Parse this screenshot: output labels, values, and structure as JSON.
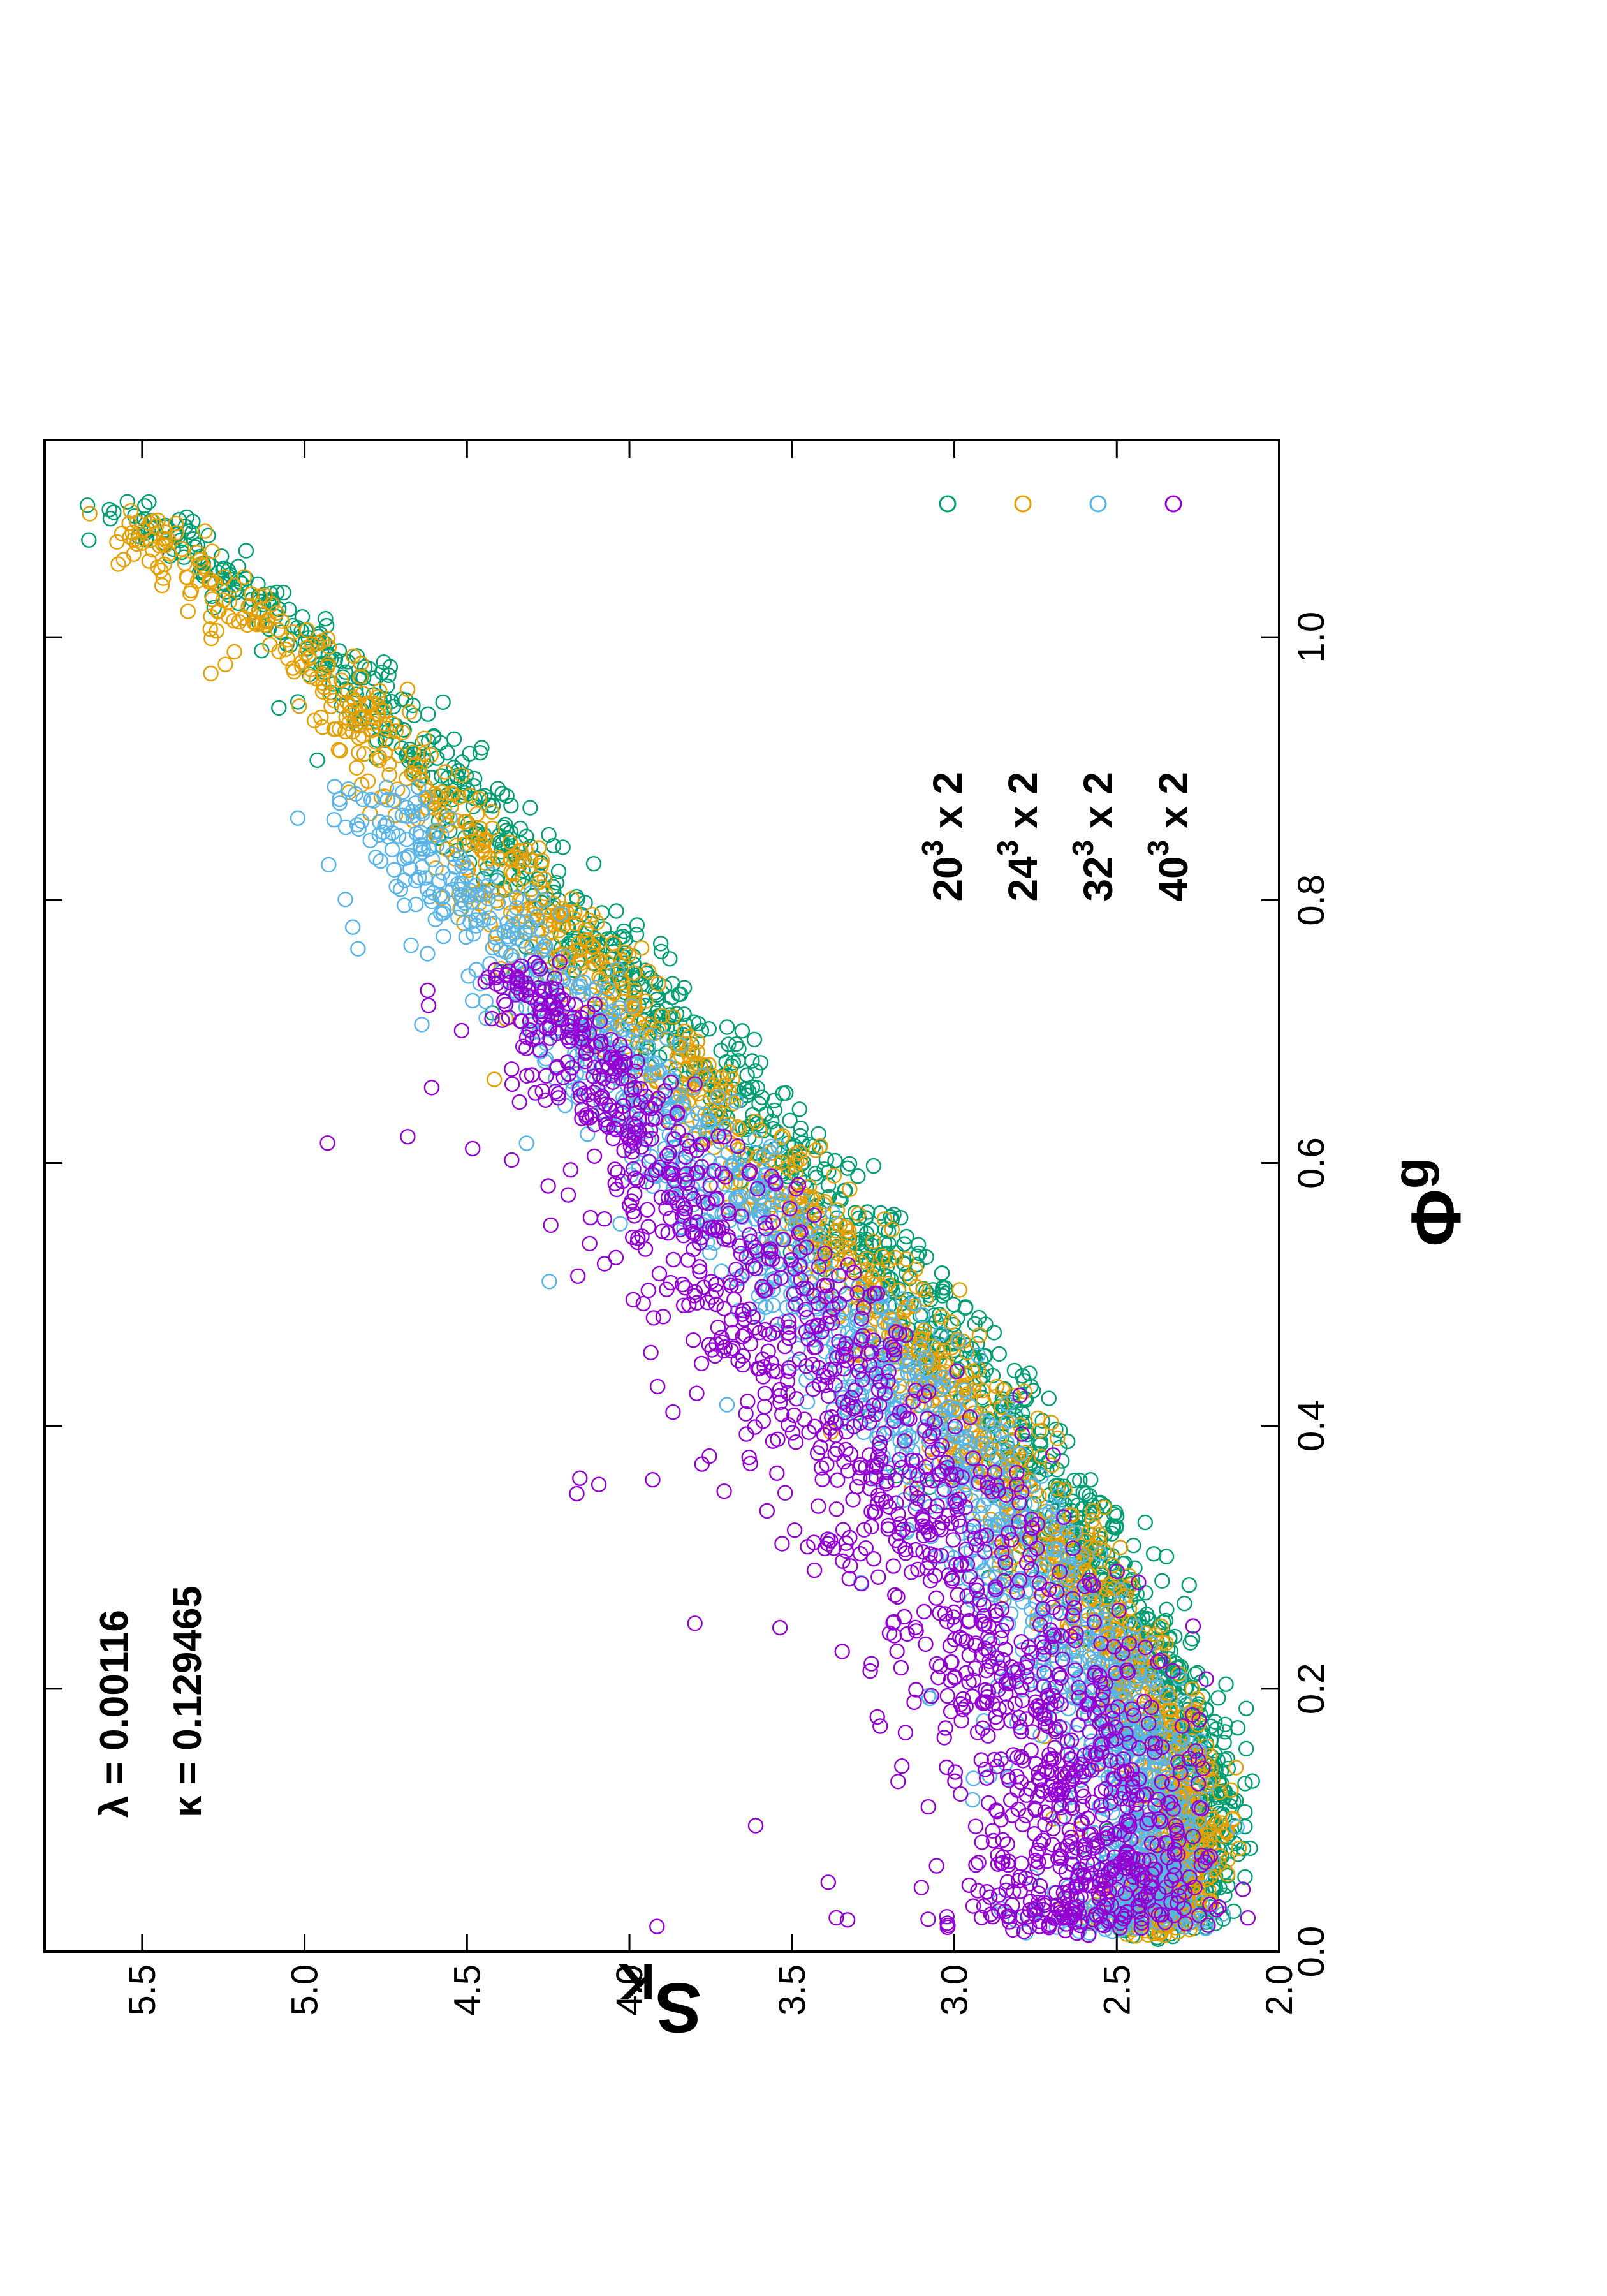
{
  "chart_data": {
    "type": "scatter",
    "orientation": "rotated-90-ccw",
    "xlabel": "Φ",
    "xlabel_superscript": "g",
    "ylabel": "S",
    "ylabel_subscript": "K",
    "xlim": [
      0.0,
      1.15
    ],
    "ylim": [
      2.0,
      5.8
    ],
    "xticks": [
      "0.0",
      "0.2",
      "0.4",
      "0.6",
      "0.8",
      "1.0"
    ],
    "yticks": [
      "2.0",
      "2.5",
      "3.0",
      "3.5",
      "4.0",
      "4.5",
      "5.0",
      "5.5"
    ],
    "legend_position": "bottom-right of plot (top-right on page)",
    "annotations": [
      "λ = 0.00116",
      "κ = 0.129465"
    ],
    "marker": "open-circle",
    "series": [
      {
        "name": "20^3 x 2",
        "label_base": "20",
        "label_sup": "3",
        "label_rest": " x 2",
        "color": "#009e73",
        "x": [
          0.02,
          0.03,
          0.05,
          0.08,
          0.1,
          0.13,
          0.16,
          0.2,
          0.24,
          0.28,
          0.33,
          0.38,
          0.43,
          0.48,
          0.53,
          0.58,
          0.63,
          0.68,
          0.73,
          0.78,
          0.83,
          0.88,
          0.93,
          0.98,
          1.02,
          1.06,
          1.09,
          1.1
        ],
        "y": [
          2.38,
          2.33,
          2.28,
          2.24,
          2.23,
          2.25,
          2.27,
          2.33,
          2.42,
          2.52,
          2.64,
          2.77,
          2.92,
          3.08,
          3.25,
          3.42,
          3.6,
          3.78,
          3.96,
          4.15,
          4.34,
          4.52,
          4.7,
          4.9,
          5.1,
          5.3,
          5.5,
          5.68
        ],
        "spread": [
          0.22,
          0.2,
          0.18,
          0.16,
          0.16,
          0.16,
          0.17,
          0.18,
          0.19,
          0.2,
          0.2,
          0.21,
          0.21,
          0.21,
          0.21,
          0.21,
          0.21,
          0.2,
          0.2,
          0.2,
          0.19,
          0.19,
          0.18,
          0.17,
          0.16,
          0.14,
          0.12,
          0.08
        ]
      },
      {
        "name": "24^3 x 2",
        "label_base": "24",
        "label_sup": "3",
        "label_rest": " x 2",
        "color": "#e69f00",
        "x": [
          0.02,
          0.03,
          0.05,
          0.08,
          0.1,
          0.13,
          0.16,
          0.2,
          0.24,
          0.28,
          0.33,
          0.38,
          0.43,
          0.48,
          0.53,
          0.58,
          0.63,
          0.68,
          0.73,
          0.78,
          0.83,
          0.88,
          0.93,
          0.98,
          1.02,
          1.06,
          1.09
        ],
        "y": [
          2.43,
          2.38,
          2.34,
          2.31,
          2.3,
          2.32,
          2.35,
          2.42,
          2.51,
          2.61,
          2.74,
          2.88,
          3.02,
          3.18,
          3.35,
          3.52,
          3.7,
          3.88,
          4.06,
          4.25,
          4.44,
          4.62,
          4.8,
          5.0,
          5.18,
          5.38,
          5.55
        ],
        "spread": [
          0.24,
          0.22,
          0.2,
          0.18,
          0.18,
          0.18,
          0.19,
          0.2,
          0.21,
          0.22,
          0.22,
          0.23,
          0.23,
          0.24,
          0.24,
          0.24,
          0.24,
          0.23,
          0.23,
          0.22,
          0.22,
          0.21,
          0.2,
          0.19,
          0.17,
          0.15,
          0.12
        ]
      },
      {
        "name": "32^3 x 2",
        "label_base": "32",
        "label_sup": "3",
        "label_rest": " x 2",
        "color": "#56b4e9",
        "x": [
          0.02,
          0.03,
          0.05,
          0.08,
          0.1,
          0.13,
          0.16,
          0.2,
          0.24,
          0.28,
          0.33,
          0.38,
          0.43,
          0.48,
          0.53,
          0.58,
          0.63,
          0.68,
          0.73,
          0.78,
          0.83,
          0.88
        ],
        "y": [
          2.5,
          2.45,
          2.42,
          2.4,
          2.4,
          2.42,
          2.46,
          2.54,
          2.63,
          2.74,
          2.88,
          3.03,
          3.18,
          3.35,
          3.53,
          3.71,
          3.88,
          4.06,
          4.24,
          4.42,
          4.62,
          4.8
        ],
        "spread": [
          0.28,
          0.26,
          0.24,
          0.22,
          0.22,
          0.22,
          0.23,
          0.25,
          0.27,
          0.28,
          0.29,
          0.3,
          0.3,
          0.3,
          0.3,
          0.28,
          0.27,
          0.26,
          0.24,
          0.22,
          0.2,
          0.18
        ]
      },
      {
        "name": "40^3 x 2",
        "label_base": "40",
        "label_sup": "3",
        "label_rest": " x 2",
        "color": "#9400d3",
        "x": [
          0.02,
          0.03,
          0.05,
          0.07,
          0.1,
          0.13,
          0.16,
          0.2,
          0.24,
          0.28,
          0.33,
          0.38,
          0.43,
          0.48,
          0.53,
          0.58,
          0.63,
          0.68,
          0.72,
          0.75
        ],
        "y": [
          2.68,
          2.62,
          2.59,
          2.57,
          2.58,
          2.61,
          2.66,
          2.74,
          2.84,
          2.95,
          3.08,
          3.22,
          3.37,
          3.52,
          3.68,
          3.84,
          4.0,
          4.15,
          4.28,
          4.38
        ],
        "spread": [
          0.5,
          0.5,
          0.48,
          0.46,
          0.46,
          0.47,
          0.48,
          0.5,
          0.52,
          0.52,
          0.52,
          0.5,
          0.48,
          0.45,
          0.42,
          0.38,
          0.32,
          0.26,
          0.2,
          0.14
        ]
      }
    ]
  }
}
